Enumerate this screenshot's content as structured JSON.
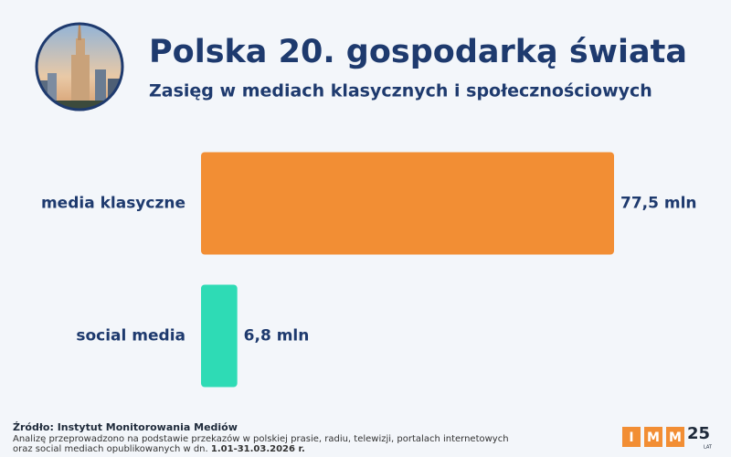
{
  "chart_data": {
    "type": "bar",
    "orientation": "horizontal",
    "title": "Polska 20. gospodarką świata",
    "subtitle": "Zasięg w mediach klasycznych i społecznościowych",
    "categories": [
      "media klasyczne",
      "social media"
    ],
    "values": [
      77.5,
      6.8
    ],
    "value_labels": [
      "77,5 mln",
      "6,8 mln"
    ],
    "colors": [
      "#f28e34",
      "#2edbb5"
    ],
    "source": "Źródło: Instytut Monitorowania Mediów",
    "note": [
      "Analizę przeprowadzono na podstawie przekazów w polskiej prasie, radiu, telewizji, portalach internetowych",
      "oraz social mediach opublikowanych w dn."
    ],
    "note_date": "1.01-31.03.2026 r.",
    "logo": {
      "letters": [
        "I",
        "M",
        "M"
      ],
      "number": "25",
      "suffix": "LAT"
    }
  }
}
